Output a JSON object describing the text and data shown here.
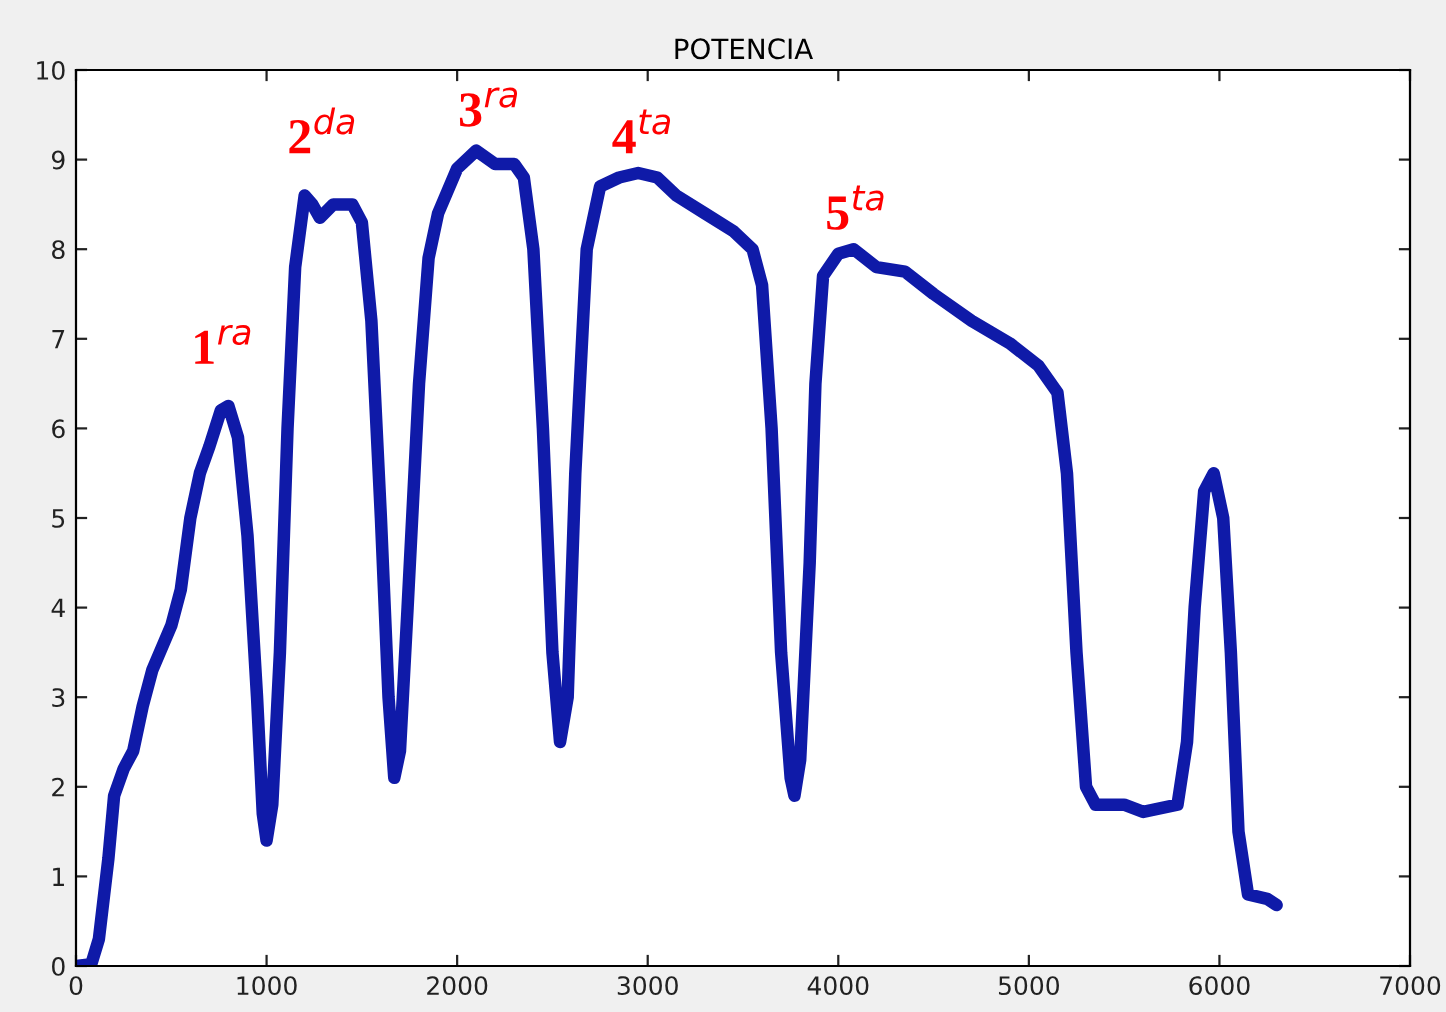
{
  "chart_data": {
    "type": "line",
    "title": "POTENCIA",
    "x": [
      0,
      80,
      120,
      170,
      200,
      250,
      300,
      350,
      400,
      500,
      550,
      600,
      650,
      700,
      760,
      800,
      850,
      900,
      950,
      980,
      1000,
      1030,
      1070,
      1110,
      1150,
      1200,
      1240,
      1280,
      1350,
      1450,
      1500,
      1550,
      1600,
      1640,
      1670,
      1700,
      1740,
      1800,
      1850,
      1900,
      2000,
      2100,
      2200,
      2300,
      2350,
      2400,
      2450,
      2500,
      2540,
      2580,
      2620,
      2680,
      2750,
      2850,
      2950,
      3050,
      3150,
      3300,
      3450,
      3550,
      3600,
      3650,
      3700,
      3750,
      3770,
      3800,
      3850,
      3880,
      3920,
      4000,
      4080,
      4200,
      4350,
      4500,
      4700,
      4900,
      5050,
      5150,
      5200,
      5250,
      5300,
      5350,
      5500,
      5600,
      5780,
      5830,
      5870,
      5920,
      5970,
      6020,
      6060,
      6100,
      6150,
      6250,
      6300
    ],
    "series": [
      {
        "color": "#0f1aa8",
        "values": [
          0,
          0.02,
          0.3,
          1.2,
          1.9,
          2.2,
          2.4,
          2.9,
          3.3,
          3.8,
          4.2,
          5.0,
          5.5,
          5.8,
          6.2,
          6.25,
          5.9,
          4.8,
          3.0,
          1.7,
          1.4,
          1.8,
          3.5,
          6.0,
          7.8,
          8.6,
          8.5,
          8.35,
          8.5,
          8.5,
          8.3,
          7.2,
          5.0,
          3.0,
          2.1,
          2.4,
          4.0,
          6.5,
          7.9,
          8.4,
          8.9,
          9.1,
          8.95,
          8.95,
          8.8,
          8.0,
          6.0,
          3.5,
          2.5,
          3.0,
          5.5,
          8.0,
          8.7,
          8.8,
          8.85,
          8.8,
          8.6,
          8.4,
          8.2,
          8.0,
          7.6,
          6.0,
          3.5,
          2.1,
          1.9,
          2.3,
          4.5,
          6.5,
          7.7,
          7.95,
          8.0,
          7.8,
          7.75,
          7.5,
          7.2,
          6.95,
          6.7,
          6.4,
          5.5,
          3.5,
          2.0,
          1.8,
          1.8,
          1.72,
          1.8,
          2.5,
          4.0,
          5.3,
          5.5,
          5.0,
          3.5,
          1.5,
          0.8,
          0.75,
          0.68
        ]
      }
    ],
    "xlim": [
      0,
      7000
    ],
    "xticks": [
      0,
      1000,
      2000,
      3000,
      4000,
      5000,
      6000,
      7000
    ],
    "ylim": [
      0,
      10
    ],
    "yticks": [
      0,
      1,
      2,
      3,
      4,
      5,
      6,
      7,
      8,
      9,
      10
    ],
    "grid": false,
    "marker": "none",
    "line_style": "solid",
    "annotations": [
      "1$^{ra}$",
      "2$^{da}$",
      "3$^{ra}$",
      "4$^{ta}$",
      "5$^{ta}$"
    ]
  }
}
